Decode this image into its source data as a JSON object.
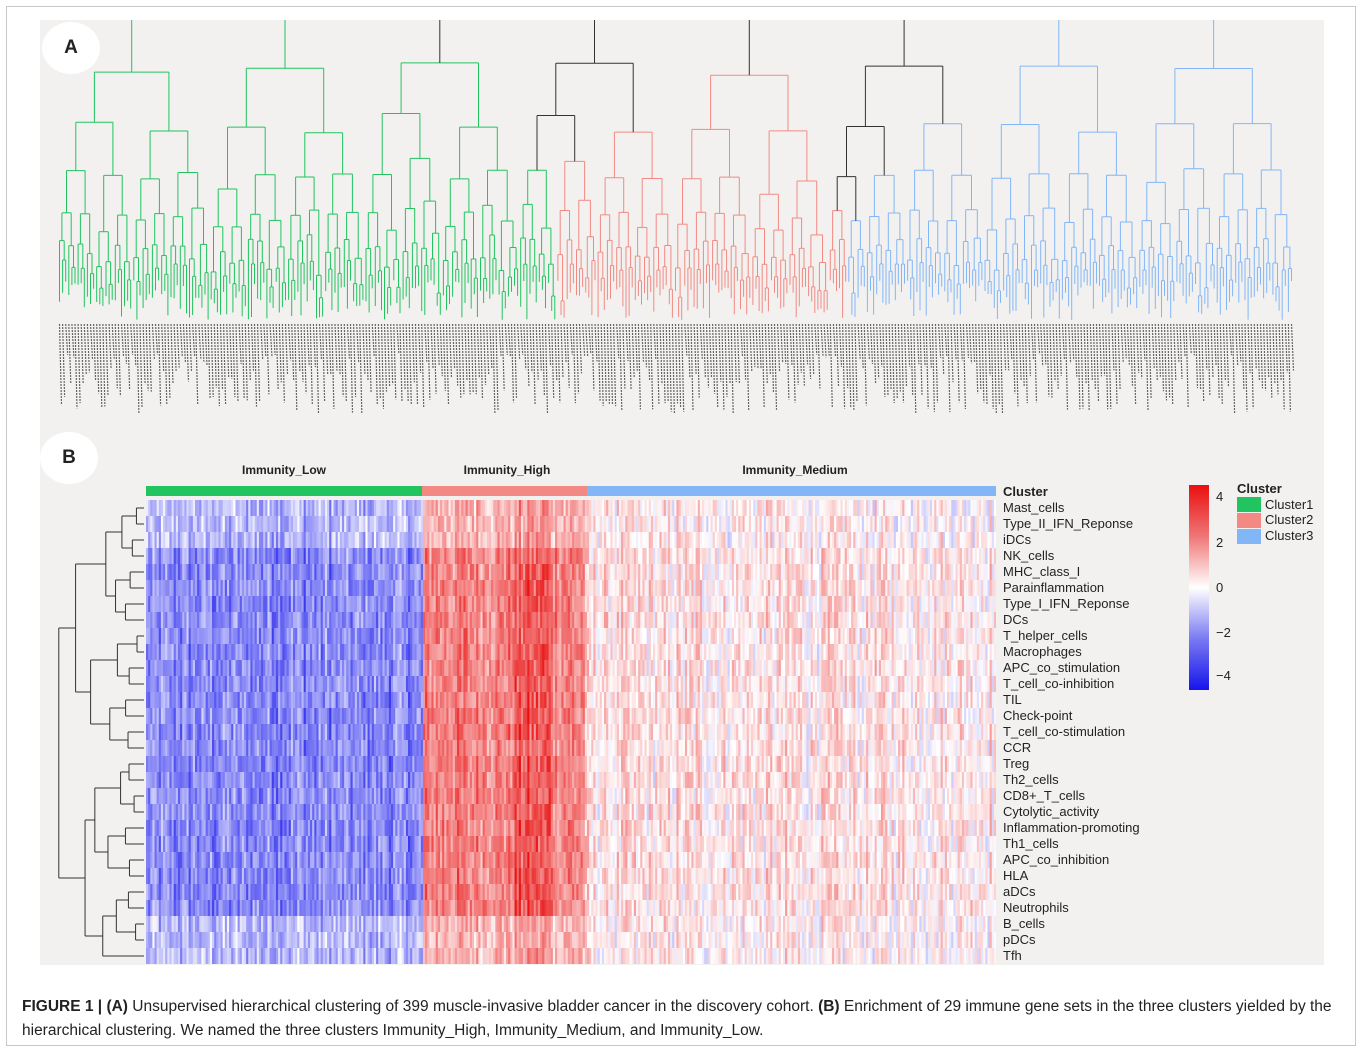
{
  "figure": {
    "panel_a_label": "A",
    "panel_b_label": "B",
    "caption_fig_num": "FIGURE 1 | ",
    "caption_ref_a": "(A)",
    "caption_text_a": " Unsupervised hierarchical clustering of 399 muscle-invasive bladder cancer in the discovery cohort. ",
    "caption_ref_b": "(B)",
    "caption_text_b": " Enrichment of 29 immune gene sets in the three clusters yielded by the hierarchical clustering. We named the three clusters Immunity_High, Immunity_Medium, and Immunity_Low."
  },
  "colors": {
    "cluster1": "#21c45f",
    "cluster2": "#f28a83",
    "cluster3": "#82b6f7",
    "high": "#e81010",
    "mid": "#ffffff",
    "low": "#1515ec"
  },
  "chart_data": [
    {
      "type": "dendrogram",
      "title": "",
      "samples": 399,
      "groups": [
        {
          "name": "Cluster1",
          "color": "#21c45f"
        },
        {
          "name": "Cluster2",
          "color": "#f28a83"
        },
        {
          "name": "Cluster3",
          "color": "#82b6f7"
        }
      ]
    },
    {
      "type": "heatmap",
      "column_groups": [
        "Immunity_Low",
        "Immunity_High",
        "Immunity_Medium"
      ],
      "annotation_title": "Cluster",
      "rows": [
        "Mast_cells",
        "Type_II_IFN_Reponse",
        "iDCs",
        "NK_cells",
        "MHC_class_I",
        "Parainflammation",
        "Type_I_IFN_Reponse",
        "DCs",
        "T_helper_cells",
        "Macrophages",
        "APC_co_stimulation",
        "T_cell_co-inhibition",
        "TIL",
        "Check-point",
        "T_cell_co-stimulation",
        "CCR",
        "Treg",
        "Th2_cells",
        "CD8+_T_cells",
        "Cytolytic_activity",
        "Inflammation-promoting",
        "Th1_cells",
        "APC_co_inhibition",
        "HLA",
        "aDCs",
        "Neutrophils",
        "B_cells",
        "pDCs",
        "Tfh"
      ],
      "colorbar_ticks": [
        "4",
        "2",
        "0",
        "−2",
        "−4"
      ],
      "colorbar_range": [
        -4,
        4
      ],
      "legend": {
        "title": "Cluster",
        "entries": [
          "Cluster1",
          "Cluster2",
          "Cluster3"
        ]
      }
    }
  ]
}
